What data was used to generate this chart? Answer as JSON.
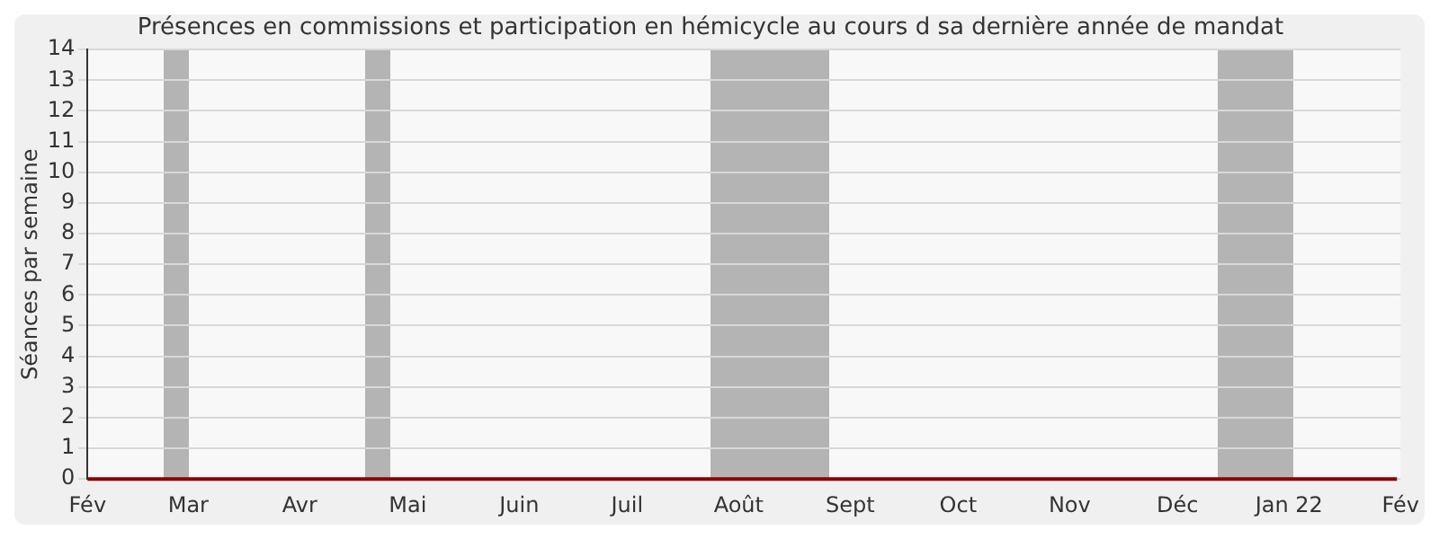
{
  "chart_data": {
    "type": "line",
    "title": "Présences en commissions et participation en hémicycle au cours d sa dernière année de mandat",
    "ylabel": "Séances par semaine",
    "x": [
      "2021-02-01",
      "2021-02-08",
      "2021-02-15",
      "2021-02-22",
      "2021-03-01",
      "2021-03-08",
      "2021-03-15",
      "2021-03-22",
      "2021-03-29",
      "2021-04-05",
      "2021-04-12",
      "2021-04-19",
      "2021-04-26",
      "2021-05-03",
      "2021-05-10",
      "2021-05-17",
      "2021-05-24",
      "2021-05-31",
      "2021-06-07",
      "2021-06-14",
      "2021-06-21",
      "2021-06-28",
      "2021-07-05",
      "2021-07-12",
      "2021-07-19",
      "2021-07-26",
      "2021-08-02",
      "2021-08-09",
      "2021-08-16",
      "2021-08-23",
      "2021-08-30",
      "2021-09-06",
      "2021-09-13",
      "2021-09-20",
      "2021-09-27",
      "2021-10-04",
      "2021-10-11",
      "2021-10-18",
      "2021-10-25",
      "2021-11-01",
      "2021-11-08",
      "2021-11-15",
      "2021-11-22",
      "2021-11-29",
      "2021-12-06",
      "2021-12-13",
      "2021-12-20",
      "2021-12-27",
      "2022-01-03",
      "2022-01-10",
      "2022-01-17",
      "2022-01-24",
      "2022-01-31"
    ],
    "series": [
      {
        "color": "#8b0000",
        "values": [
          0,
          0,
          0,
          0,
          0,
          0,
          0,
          0,
          0,
          0,
          0,
          0,
          0,
          0,
          0,
          0,
          0,
          0,
          0,
          0,
          0,
          0,
          0,
          0,
          0,
          0,
          0,
          0,
          0,
          0,
          0,
          0,
          0,
          0,
          0,
          0,
          0,
          0,
          0,
          0,
          0,
          0,
          0,
          0,
          0,
          0,
          0,
          0,
          0,
          0,
          0,
          0,
          0
        ]
      }
    ],
    "xlim": [
      "2021-02-01",
      "2022-02-01"
    ],
    "xticks": [
      {
        "value": "2021-02-01",
        "label": "Fév"
      },
      {
        "value": "2021-03-01",
        "label": "Mar"
      },
      {
        "value": "2021-04-01",
        "label": "Avr"
      },
      {
        "value": "2021-05-01",
        "label": "Mai"
      },
      {
        "value": "2021-06-01",
        "label": "Juin"
      },
      {
        "value": "2021-07-01",
        "label": "Juil"
      },
      {
        "value": "2021-08-01",
        "label": "Août"
      },
      {
        "value": "2021-09-01",
        "label": "Sept"
      },
      {
        "value": "2021-10-01",
        "label": "Oct"
      },
      {
        "value": "2021-11-01",
        "label": "Nov"
      },
      {
        "value": "2021-12-01",
        "label": "Déc"
      },
      {
        "value": "2022-01-01",
        "label": "Jan 22"
      },
      {
        "value": "2022-02-01",
        "label": "Fév"
      }
    ],
    "ylim": [
      0,
      14
    ],
    "yticks": [
      0,
      1,
      2,
      3,
      4,
      5,
      6,
      7,
      8,
      9,
      10,
      11,
      12,
      13,
      14
    ],
    "bands": [
      {
        "axis": "x",
        "from": "2021-02-22",
        "to": "2021-03-01",
        "color": "#b4b4b4"
      },
      {
        "axis": "x",
        "from": "2021-04-19",
        "to": "2021-04-26",
        "color": "#b4b4b4"
      },
      {
        "axis": "x",
        "from": "2021-07-24",
        "to": "2021-08-26",
        "color": "#b4b4b4"
      },
      {
        "axis": "x",
        "from": "2021-12-12",
        "to": "2022-01-02",
        "color": "#b4b4b4"
      }
    ],
    "grid": "y",
    "legend": false,
    "marker": "none",
    "line_style": "solid"
  }
}
